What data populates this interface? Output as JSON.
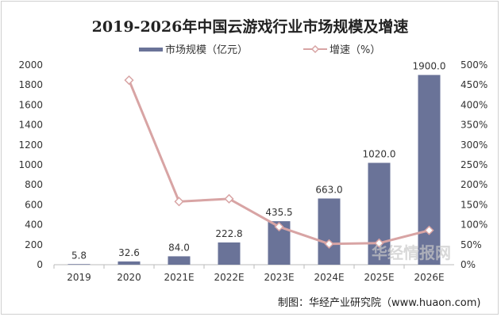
{
  "chart_data": {
    "type": "bar+line",
    "title": "2019-2026年中国云游戏行业市场规模及增速",
    "categories": [
      "2019",
      "2020",
      "2021E",
      "2022E",
      "2023E",
      "2024E",
      "2025E",
      "2026E"
    ],
    "series": [
      {
        "name": "市场规模（亿元）",
        "type": "bar",
        "axis": "left",
        "color": "#6a7398",
        "values": [
          5.8,
          32.6,
          84.0,
          222.8,
          435.5,
          663.0,
          1020.0,
          1900.0
        ],
        "labels": [
          "5.8",
          "32.6",
          "84.0",
          "222.8",
          "435.5",
          "663.0",
          "1020.0",
          "1900.0"
        ]
      },
      {
        "name": "增速（%）",
        "type": "line",
        "axis": "right",
        "color": "#d8a4a4",
        "values": [
          null,
          462,
          158,
          165,
          95,
          52,
          54,
          86
        ]
      }
    ],
    "ylim_left": [
      0,
      2000
    ],
    "yticks_left": [
      "0",
      "200",
      "400",
      "600",
      "800",
      "1000",
      "1200",
      "1400",
      "1600",
      "1800",
      "2000"
    ],
    "ylim_right": [
      0,
      500
    ],
    "yticks_right": [
      "0%",
      "50%",
      "100%",
      "150%",
      "200%",
      "250%",
      "300%",
      "350%",
      "400%",
      "450%",
      "500%"
    ],
    "grid": false,
    "legend": "top"
  },
  "source": "制图：华经产业研究院（www.huaon.com)",
  "watermark": "华经情报网 huaon.com"
}
